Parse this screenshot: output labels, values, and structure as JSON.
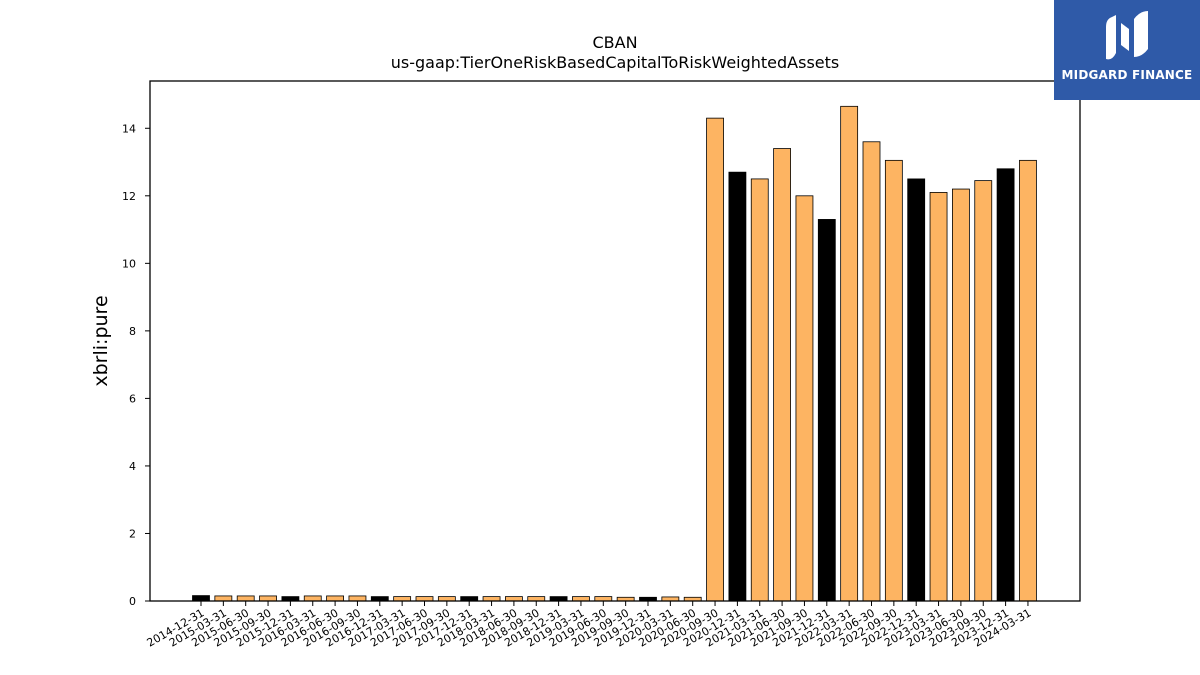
{
  "chart_data": {
    "type": "bar",
    "title": "CBAN",
    "subtitle": "us-gaap:TierOneRiskBasedCapitalToRiskWeightedAssets",
    "xlabel": "",
    "ylabel": "xbrli:pure",
    "ylim": [
      0,
      15.4
    ],
    "yticks": [
      0,
      2,
      4,
      6,
      8,
      10,
      12,
      14
    ],
    "grid": false,
    "colors": {
      "highlight": "#000000",
      "normal": "#fdb462",
      "edge": "#000000"
    },
    "categories": [
      "2014-12-31",
      "2015-03-31",
      "2015-06-30",
      "2015-09-30",
      "2015-12-31",
      "2016-03-31",
      "2016-06-30",
      "2016-09-30",
      "2016-12-31",
      "2017-03-31",
      "2017-06-30",
      "2017-09-30",
      "2017-12-31",
      "2018-03-31",
      "2018-06-30",
      "2018-09-30",
      "2018-12-31",
      "2019-03-31",
      "2019-06-30",
      "2019-09-30",
      "2019-12-31",
      "2020-03-31",
      "2020-06-30",
      "2020-09-30",
      "2020-12-31",
      "2021-03-31",
      "2021-06-30",
      "2021-09-30",
      "2021-12-31",
      "2022-03-31",
      "2022-06-30",
      "2022-09-30",
      "2022-12-31",
      "2023-03-31",
      "2023-06-30",
      "2023-09-30",
      "2023-12-31",
      "2024-03-31"
    ],
    "values": [
      0.16,
      0.15,
      0.15,
      0.15,
      0.13,
      0.15,
      0.15,
      0.15,
      0.13,
      0.13,
      0.13,
      0.13,
      0.13,
      0.13,
      0.13,
      0.13,
      0.13,
      0.13,
      0.13,
      0.11,
      0.11,
      0.12,
      0.11,
      14.3,
      12.7,
      12.5,
      13.4,
      12.0,
      11.3,
      14.65,
      13.6,
      13.05,
      12.5,
      12.1,
      12.2,
      12.45,
      12.8,
      13.05
    ],
    "highlight": [
      true,
      false,
      false,
      false,
      true,
      false,
      false,
      false,
      true,
      false,
      false,
      false,
      true,
      false,
      false,
      false,
      true,
      false,
      false,
      false,
      true,
      false,
      false,
      false,
      true,
      false,
      false,
      false,
      true,
      false,
      false,
      false,
      true,
      false,
      false,
      false,
      true,
      false
    ]
  },
  "logo": {
    "text": "MIDGARD FINANCE",
    "background": "#2f5aa8"
  }
}
